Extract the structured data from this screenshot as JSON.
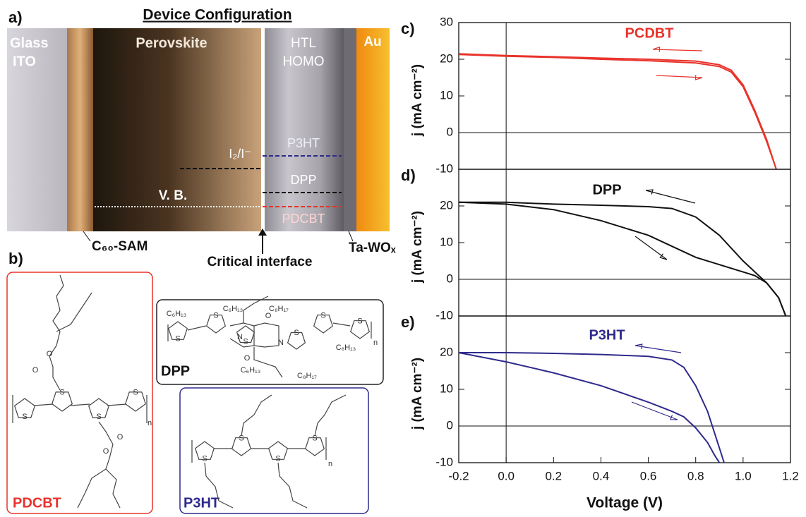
{
  "panel_a": {
    "label": "a)",
    "title": "Device Configuration",
    "glass": "Glass",
    "ito": "ITO",
    "perovskite": "Perovskite",
    "htl": "HTL",
    "homo": "HOMO",
    "au": "Au",
    "p3ht": "P3HT",
    "iodide": "I₂/I⁻",
    "dpp": "DPP",
    "vb": "V. B.",
    "pdcbt": "PDCBT",
    "c60": "C₆₀-SAM",
    "interface": "Critical interface",
    "tawox": "Ta-WOₓ"
  },
  "panel_b": {
    "label": "b)",
    "pdcbt": "PDCBT",
    "dpp": "DPP",
    "p3ht": "P3HT",
    "atoms": {
      "S": "S",
      "O": "O",
      "N": "N",
      "n": "n",
      "hexyl": "C₆H₁₃",
      "octyl": "C₈H₁₇"
    }
  },
  "chart_data": [
    {
      "type": "line",
      "panel_label": "c)",
      "annotation": "PCDBT",
      "ylabel": "j (mA cm⁻²)",
      "color": "#e8332b",
      "xlim": [
        -0.2,
        1.2
      ],
      "ylim": [
        -10,
        30
      ],
      "yticks": [
        -10,
        0,
        10,
        20,
        30
      ],
      "x": [
        -0.2,
        0,
        0.2,
        0.4,
        0.6,
        0.8,
        0.9,
        0.95,
        1.0,
        1.05,
        1.1,
        1.14
      ],
      "series": [
        {
          "color": "#e8332b",
          "values": [
            21.5,
            21,
            20.7,
            20.3,
            20,
            19.5,
            18.5,
            17,
            13,
            6,
            -2,
            -10
          ]
        },
        {
          "color": "#e8332b",
          "values": [
            21.3,
            20.8,
            20.5,
            20,
            19.6,
            19,
            18,
            16.5,
            12.5,
            5.5,
            -2.5,
            -10
          ]
        }
      ]
    },
    {
      "type": "line",
      "panel_label": "d)",
      "annotation": "DPP",
      "ylabel": "j (mA cm⁻²)",
      "color": "#111111",
      "xlim": [
        -0.2,
        1.2
      ],
      "ylim": [
        -10,
        30
      ],
      "yticks": [
        -10,
        0,
        10,
        20
      ],
      "x": [
        -0.2,
        0,
        0.2,
        0.4,
        0.6,
        0.7,
        0.8,
        0.9,
        1.0,
        1.05,
        1.1,
        1.15,
        1.18
      ],
      "series": [
        {
          "color": "#111111",
          "values": [
            21,
            21,
            20.5,
            20.2,
            19.8,
            19.3,
            17,
            12,
            5,
            2,
            -1,
            -5,
            -10
          ]
        },
        {
          "color": "#111111",
          "values": [
            21,
            20.5,
            19,
            16,
            12,
            9,
            6,
            4,
            2,
            1,
            -1,
            -5,
            -10
          ]
        }
      ]
    },
    {
      "type": "line",
      "panel_label": "e)",
      "annotation": "P3HT",
      "ylabel": "j (mA cm⁻²)",
      "xlabel": "Voltage (V)",
      "color": "#2e2a8c",
      "xlim": [
        -0.2,
        1.2
      ],
      "ylim": [
        -10,
        30
      ],
      "yticks": [
        -10,
        0,
        10,
        20
      ],
      "xticks": [
        -0.2,
        {
          "value": 0,
          "label": "0.0"
        },
        0.2,
        0.4,
        0.6,
        0.8,
        {
          "value": 1,
          "label": "1.0"
        },
        1.2
      ],
      "x": [
        -0.2,
        0,
        0.2,
        0.4,
        0.6,
        0.7,
        0.75,
        0.8,
        0.85,
        0.88,
        0.9,
        0.92
      ],
      "series": [
        {
          "color": "#2e2a8c",
          "values": [
            20,
            20,
            19.8,
            19.5,
            19,
            18,
            16,
            11,
            4,
            -2,
            -6,
            -10
          ]
        },
        {
          "color": "#2e2a8c",
          "values": [
            20,
            17.5,
            14.5,
            11,
            6.5,
            4,
            2.5,
            -0.5,
            -4.5,
            -8,
            -10,
            null
          ]
        }
      ]
    }
  ]
}
